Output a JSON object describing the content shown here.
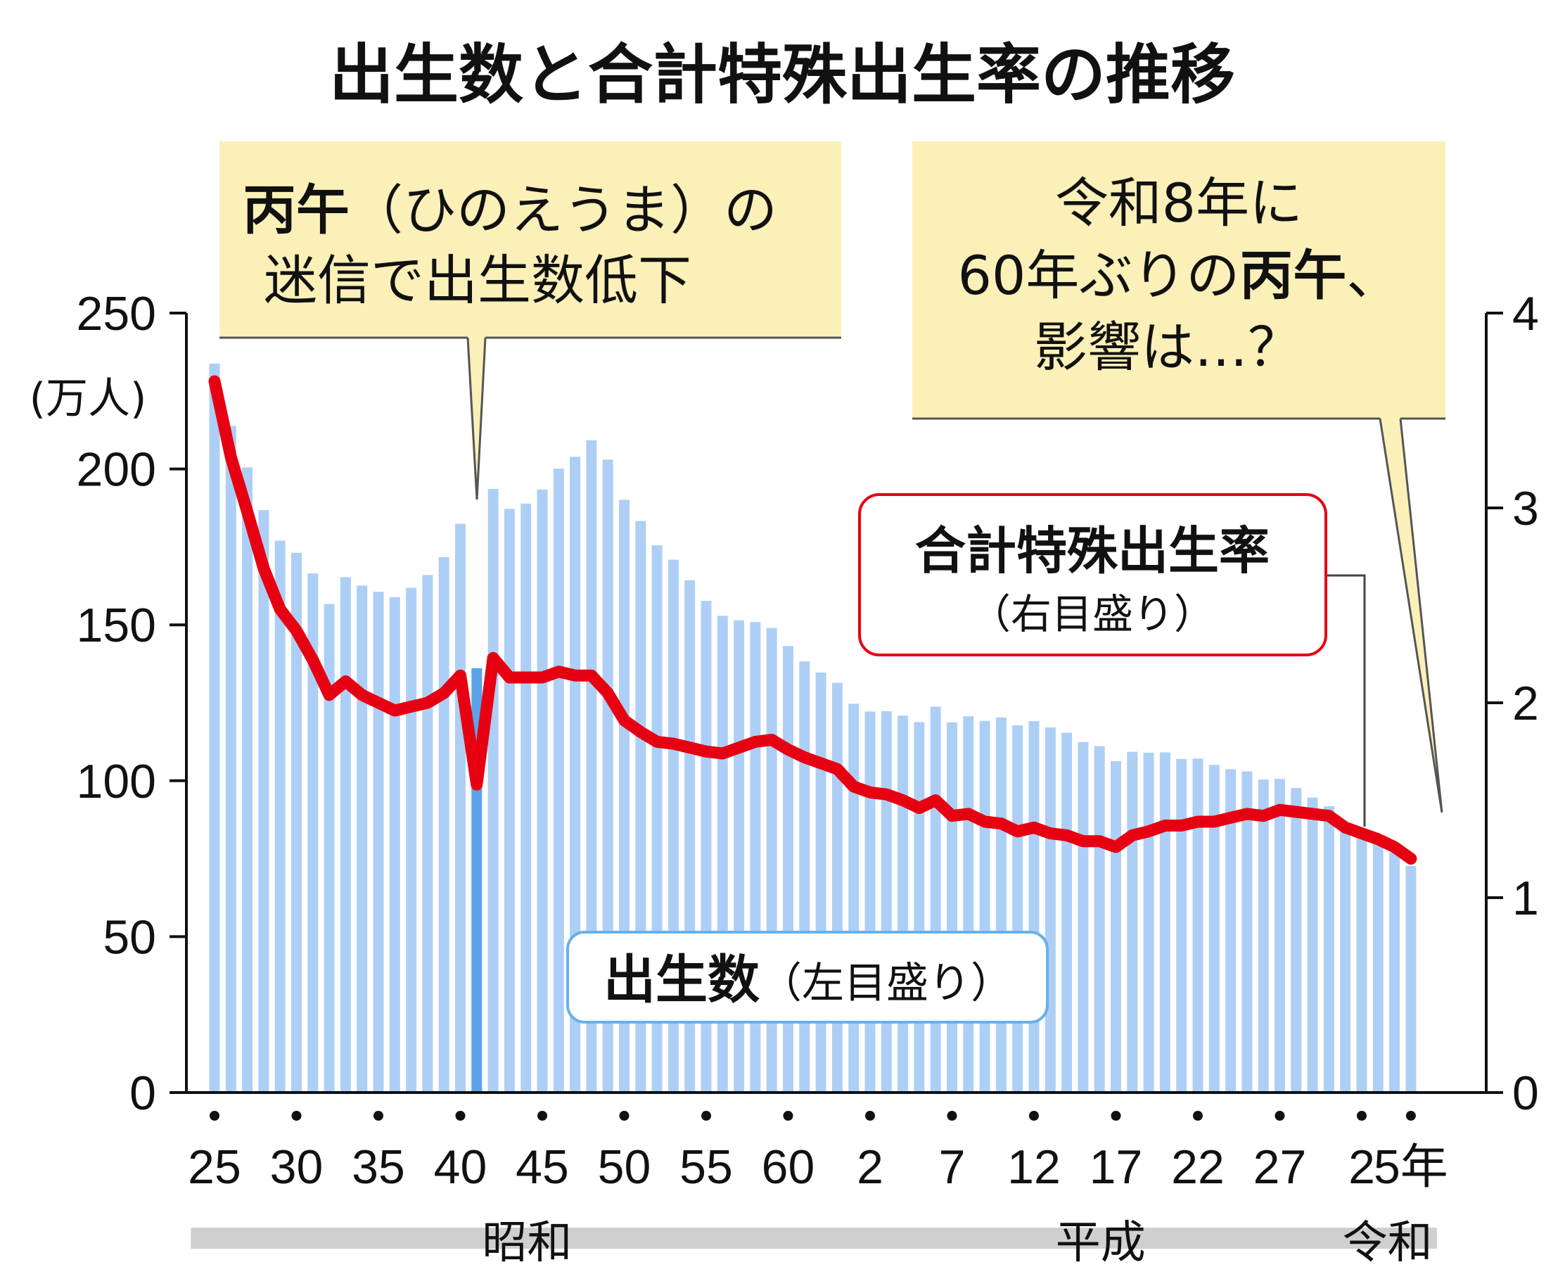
{
  "chart_data": {
    "type": "bar",
    "title": "出生数と合計特殊出生率の推移",
    "x": [
      "昭和25",
      "昭和26",
      "昭和27",
      "昭和28",
      "昭和29",
      "昭和30",
      "昭和31",
      "昭和32",
      "昭和33",
      "昭和34",
      "昭和35",
      "昭和36",
      "昭和37",
      "昭和38",
      "昭和39",
      "昭和40",
      "昭和41",
      "昭和42",
      "昭和43",
      "昭和44",
      "昭和45",
      "昭和46",
      "昭和47",
      "昭和48",
      "昭和49",
      "昭和50",
      "昭和51",
      "昭和52",
      "昭和53",
      "昭和54",
      "昭和55",
      "昭和56",
      "昭和57",
      "昭和58",
      "昭和59",
      "昭和60",
      "昭和61",
      "昭和62",
      "昭和63",
      "平成元",
      "平成2",
      "平成3",
      "平成4",
      "平成5",
      "平成6",
      "平成7",
      "平成8",
      "平成9",
      "平成10",
      "平成11",
      "平成12",
      "平成13",
      "平成14",
      "平成15",
      "平成16",
      "平成17",
      "平成18",
      "平成19",
      "平成20",
      "平成21",
      "平成22",
      "平成23",
      "平成24",
      "平成25",
      "平成26",
      "平成27",
      "平成28",
      "平成29",
      "平成30",
      "令和元",
      "令和2",
      "令和3",
      "令和4",
      "令和5"
    ],
    "series": [
      {
        "name": "出生数",
        "axis": "left",
        "unit": "(万人)",
        "color": "#aecff5",
        "highlight_color": "#5aa3e8",
        "highlight_index": 16,
        "values": [
          233.8,
          213.8,
          200.5,
          186.8,
          177.0,
          173.1,
          166.5,
          156.7,
          165.3,
          162.6,
          160.6,
          158.9,
          161.9,
          166.0,
          171.7,
          182.4,
          136.1,
          193.6,
          187.2,
          188.9,
          193.4,
          200.1,
          203.9,
          209.2,
          203.0,
          190.1,
          183.3,
          175.5,
          170.9,
          164.3,
          157.7,
          152.9,
          151.5,
          150.9,
          149.0,
          143.2,
          138.3,
          134.7,
          131.4,
          124.7,
          122.2,
          122.3,
          120.9,
          118.8,
          123.8,
          118.7,
          120.7,
          119.2,
          120.3,
          117.8,
          119.1,
          117.1,
          115.4,
          112.4,
          111.1,
          106.3,
          109.3,
          109.0,
          109.1,
          107.0,
          107.1,
          105.1,
          103.7,
          103.0,
          100.4,
          100.6,
          97.7,
          94.6,
          91.8,
          86.5,
          84.1,
          81.2,
          77.1,
          72.7
        ]
      },
      {
        "name": "合計特殊出生率",
        "axis": "right",
        "color": "#e60012",
        "values": [
          3.65,
          3.26,
          2.98,
          2.69,
          2.48,
          2.37,
          2.22,
          2.04,
          2.11,
          2.04,
          2.0,
          1.96,
          1.98,
          2.0,
          2.05,
          2.14,
          1.58,
          2.23,
          2.13,
          2.13,
          2.13,
          2.16,
          2.14,
          2.14,
          2.05,
          1.91,
          1.85,
          1.8,
          1.79,
          1.77,
          1.75,
          1.74,
          1.77,
          1.8,
          1.81,
          1.76,
          1.72,
          1.69,
          1.66,
          1.57,
          1.54,
          1.53,
          1.5,
          1.46,
          1.5,
          1.42,
          1.43,
          1.39,
          1.38,
          1.34,
          1.36,
          1.33,
          1.32,
          1.29,
          1.29,
          1.26,
          1.32,
          1.34,
          1.37,
          1.37,
          1.39,
          1.39,
          1.41,
          1.43,
          1.42,
          1.45,
          1.44,
          1.43,
          1.42,
          1.36,
          1.33,
          1.3,
          1.26,
          1.2
        ]
      }
    ],
    "left_axis": {
      "ylim": [
        0,
        250
      ],
      "ticks": [
        "0",
        "50",
        "100",
        "150",
        "200",
        "250"
      ],
      "unit": "(万人)"
    },
    "right_axis": {
      "ylim": [
        0,
        4
      ],
      "ticks": [
        "0",
        "1",
        "2",
        "3",
        "4"
      ]
    },
    "x_tick_labels": [
      {
        "index": 0,
        "label": "25"
      },
      {
        "index": 5,
        "label": "30"
      },
      {
        "index": 10,
        "label": "35"
      },
      {
        "index": 15,
        "label": "40"
      },
      {
        "index": 20,
        "label": "45"
      },
      {
        "index": 25,
        "label": "50"
      },
      {
        "index": 30,
        "label": "55"
      },
      {
        "index": 35,
        "label": "60"
      },
      {
        "index": 40,
        "label": "2"
      },
      {
        "index": 45,
        "label": "7"
      },
      {
        "index": 50,
        "label": "12"
      },
      {
        "index": 55,
        "label": "17"
      },
      {
        "index": 60,
        "label": "22"
      },
      {
        "index": 65,
        "label": "27"
      },
      {
        "index": 70,
        "label": "2"
      },
      {
        "index": 73,
        "label": "5年"
      }
    ],
    "eras": [
      {
        "label": "昭和",
        "start_index": 0,
        "end_index": 39
      },
      {
        "label": "平成",
        "start_index": 40,
        "end_index": 69
      },
      {
        "label": "令和",
        "start_index": 70,
        "end_index": 74
      }
    ],
    "annotations": {
      "hinoeuma_callout": {
        "bold": "丙午",
        "normal": "（ひのえうま）の",
        "line2": "迷信で出生数低下",
        "points_to_index": 16
      },
      "reiwa8_callout": {
        "line1": "令和8年に",
        "line2_a": "60年ぶりの",
        "line2_b": "丙午",
        "line2_c": "、",
        "line3": "影響は…？"
      },
      "tfr_label": {
        "title": "合計特殊出生率",
        "sub": "（右目盛り）"
      },
      "births_label": {
        "title": "出生数",
        "sub": "（左目盛り）"
      }
    },
    "grid": false,
    "legend": "inline-labels"
  }
}
